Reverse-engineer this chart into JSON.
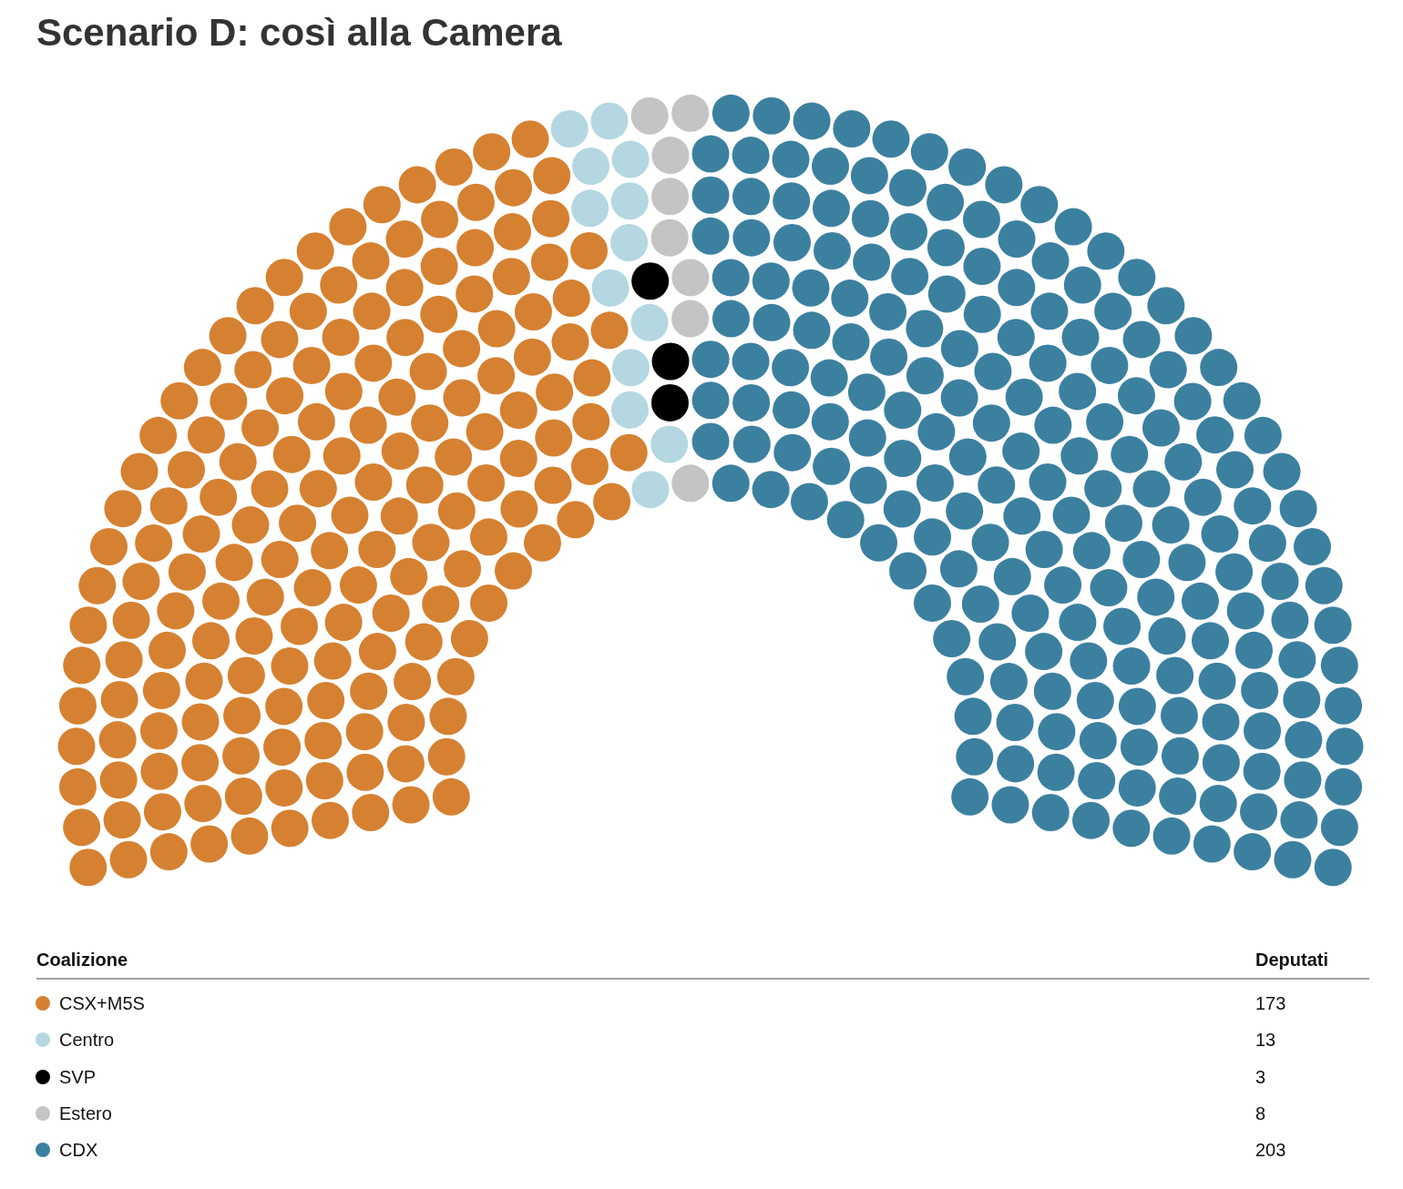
{
  "chart_data": {
    "type": "other",
    "title": "Scenario D: così alla Camera",
    "categories": [
      "CSX+M5S",
      "Centro",
      "SVP",
      "Estero",
      "CDX"
    ],
    "values": [
      173,
      13,
      3,
      8,
      203
    ],
    "colors": [
      "#d58131",
      "#b4d7e2",
      "#000000",
      "#c4c4c4",
      "#3c80a0"
    ],
    "annotations": [
      "Coalizione",
      "Deputati"
    ],
    "data_labels": true
  }
}
